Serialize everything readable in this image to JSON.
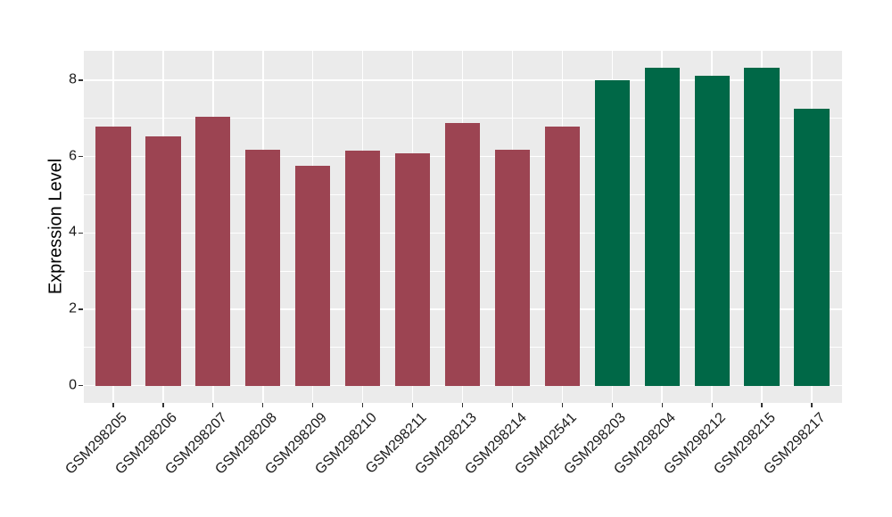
{
  "chart_data": {
    "type": "bar",
    "title": "",
    "ylabel": "Expression Level",
    "xlabel": "",
    "categories": [
      "GSM298205",
      "GSM298206",
      "GSM298207",
      "GSM298208",
      "GSM298209",
      "GSM298210",
      "GSM298211",
      "GSM298213",
      "GSM298214",
      "GSM402541",
      "GSM298203",
      "GSM298204",
      "GSM298212",
      "GSM298215",
      "GSM298217"
    ],
    "values": [
      6.79,
      6.53,
      7.03,
      6.17,
      5.76,
      6.16,
      6.08,
      6.88,
      6.17,
      6.79,
      8.0,
      8.33,
      8.12,
      8.33,
      7.25
    ],
    "bar_groups": [
      "red",
      "red",
      "red",
      "red",
      "red",
      "red",
      "red",
      "red",
      "red",
      "red",
      "green",
      "green",
      "green",
      "green",
      "green"
    ],
    "bar_colors": {
      "red": "#9C4452",
      "green": "#006847"
    },
    "yticks": [
      0,
      2,
      4,
      6,
      8
    ],
    "minor_yticks": [
      1,
      3,
      5,
      7
    ],
    "ylim": [
      -0.45,
      8.78
    ],
    "grid": true,
    "legend": "none",
    "panel_bg": "#EBEBEB",
    "grid_color": "#FFFFFF",
    "tick_color": "#333333",
    "background": "#FFFFFF"
  }
}
